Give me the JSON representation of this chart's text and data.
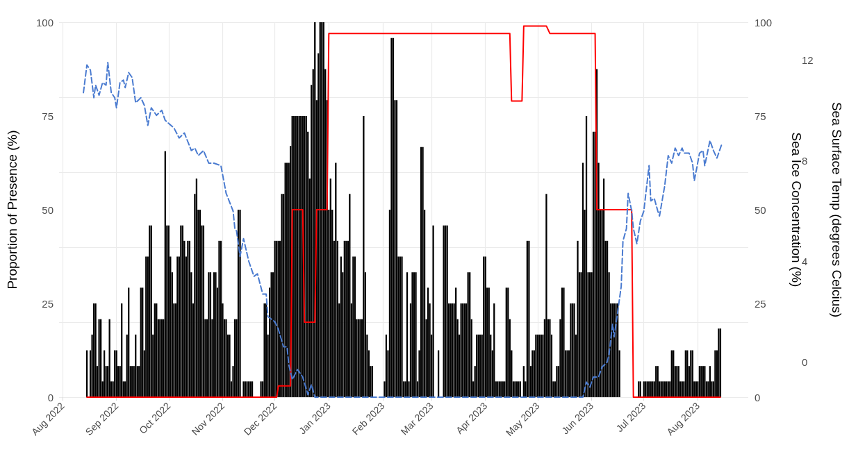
{
  "chart_data": {
    "type": "bar",
    "ylabel": "Proportion of Presence (%)",
    "y2label": "Sea Ice Concentration (%)",
    "y3label": "Sea Surface Temp (degrees Celcius)",
    "xlim": [
      "2022-07-30",
      "2023-08-30"
    ],
    "xticks": [
      {
        "value": "2022-08",
        "label": "Aug 2022"
      },
      {
        "value": "2022-09",
        "label": "Sep 2022"
      },
      {
        "value": "2022-10",
        "label": "Oct 2022"
      },
      {
        "value": "2022-11",
        "label": "Nov 2022"
      },
      {
        "value": "2022-12",
        "label": "Dec 2022"
      },
      {
        "value": "2023-01",
        "label": "Jan 2023"
      },
      {
        "value": "2023-02",
        "label": "Feb 2023"
      },
      {
        "value": "2023-03",
        "label": "Mar 2023"
      },
      {
        "value": "2023-04",
        "label": "Apr 2023"
      },
      {
        "value": "2023-05",
        "label": "May 2023"
      },
      {
        "value": "2023-06",
        "label": "Jun 2023"
      },
      {
        "value": "2023-07",
        "label": "Jul 2023"
      },
      {
        "value": "2023-08",
        "label": "Aug 2023"
      }
    ],
    "ylim": [
      0,
      100
    ],
    "yticks": [
      0,
      25,
      50,
      75,
      100
    ],
    "y2lim": [
      0,
      100
    ],
    "y2ticks": [
      0,
      25,
      50,
      75,
      100
    ],
    "y3lim": [
      -1.4,
      13.5
    ],
    "y3ticks": [
      0,
      4,
      8,
      12
    ],
    "grid": true,
    "x": [
      "2022-08-15",
      "2022-08-16",
      "2022-08-17",
      "2022-08-18",
      "2022-08-19",
      "2022-08-20",
      "2022-08-21",
      "2022-08-22",
      "2022-08-23",
      "2022-08-24",
      "2022-08-25",
      "2022-08-26",
      "2022-08-27",
      "2022-08-28",
      "2022-08-29",
      "2022-08-30",
      "2022-08-31",
      "2022-09-01",
      "2022-09-02",
      "2022-09-03",
      "2022-09-04",
      "2022-09-05",
      "2022-09-06",
      "2022-09-07",
      "2022-09-08",
      "2022-09-09",
      "2022-09-10",
      "2022-09-11",
      "2022-09-12",
      "2022-09-13",
      "2022-09-14",
      "2022-09-15",
      "2022-09-16",
      "2022-09-17",
      "2022-09-18",
      "2022-09-19",
      "2022-09-20",
      "2022-09-21",
      "2022-09-22",
      "2022-09-23",
      "2022-09-24",
      "2022-09-25",
      "2022-09-26",
      "2022-09-27",
      "2022-09-28",
      "2022-09-29",
      "2022-09-30",
      "2022-10-01",
      "2022-10-02",
      "2022-10-03",
      "2022-10-04",
      "2022-10-05",
      "2022-10-06",
      "2022-10-07",
      "2022-10-08",
      "2022-10-09",
      "2022-10-10",
      "2022-10-11",
      "2022-10-12",
      "2022-10-13",
      "2022-10-14",
      "2022-10-15",
      "2022-10-16",
      "2022-10-17",
      "2022-10-18",
      "2022-10-19",
      "2022-10-20",
      "2022-10-21",
      "2022-10-22",
      "2022-10-23",
      "2022-10-24",
      "2022-10-25",
      "2022-10-26",
      "2022-10-27",
      "2022-10-28",
      "2022-10-29",
      "2022-10-30",
      "2022-10-31",
      "2022-11-01",
      "2022-11-02",
      "2022-11-03",
      "2022-11-04",
      "2022-11-05",
      "2022-11-06",
      "2022-11-07",
      "2022-11-08",
      "2022-11-09",
      "2022-11-10",
      "2022-11-11",
      "2022-11-12",
      "2022-11-13",
      "2022-11-14",
      "2022-11-15",
      "2022-11-16",
      "2022-11-17",
      "2022-11-18",
      "2022-11-19",
      "2022-11-20",
      "2022-11-21",
      "2022-11-22",
      "2022-11-23",
      "2022-11-24",
      "2022-11-25",
      "2022-11-26",
      "2022-11-27",
      "2022-11-28",
      "2022-11-29",
      "2022-11-30",
      "2022-12-01",
      "2022-12-02",
      "2022-12-03",
      "2022-12-04",
      "2022-12-05",
      "2022-12-06",
      "2022-12-07",
      "2022-12-08",
      "2022-12-09",
      "2022-12-10",
      "2022-12-11",
      "2022-12-12",
      "2022-12-13",
      "2022-12-14",
      "2022-12-15",
      "2022-12-16",
      "2022-12-17",
      "2022-12-18",
      "2022-12-19",
      "2022-12-20",
      "2022-12-21",
      "2022-12-22",
      "2022-12-23",
      "2022-12-24",
      "2022-12-25",
      "2022-12-26",
      "2022-12-27",
      "2022-12-28",
      "2022-12-29",
      "2022-12-30",
      "2022-12-31",
      "2023-01-01",
      "2023-01-02",
      "2023-01-03",
      "2023-01-04",
      "2023-01-05",
      "2023-01-06",
      "2023-01-07",
      "2023-01-08",
      "2023-01-09",
      "2023-01-10",
      "2023-01-11",
      "2023-01-12",
      "2023-01-13",
      "2023-01-14",
      "2023-01-15",
      "2023-01-16",
      "2023-01-17",
      "2023-01-18",
      "2023-01-19",
      "2023-01-20",
      "2023-01-21",
      "2023-01-22",
      "2023-01-23",
      "2023-01-24",
      "2023-01-25",
      "2023-01-26",
      "2023-01-27",
      "2023-01-28",
      "2023-01-29",
      "2023-01-30",
      "2023-01-31",
      "2023-02-01",
      "2023-02-02",
      "2023-02-03",
      "2023-02-04",
      "2023-02-05",
      "2023-02-06",
      "2023-02-07",
      "2023-02-08",
      "2023-02-09",
      "2023-02-10",
      "2023-02-11",
      "2023-02-12",
      "2023-02-13",
      "2023-02-14",
      "2023-02-15",
      "2023-02-16",
      "2023-02-17",
      "2023-02-18",
      "2023-02-19",
      "2023-02-20",
      "2023-02-21",
      "2023-02-22",
      "2023-02-23",
      "2023-02-24",
      "2023-02-25",
      "2023-02-26",
      "2023-02-27",
      "2023-02-28",
      "2023-03-01",
      "2023-03-02",
      "2023-03-03",
      "2023-03-04",
      "2023-03-05",
      "2023-03-06",
      "2023-03-07",
      "2023-03-08",
      "2023-03-09",
      "2023-03-10",
      "2023-03-11",
      "2023-03-12",
      "2023-03-13",
      "2023-03-14",
      "2023-03-15",
      "2023-03-16",
      "2023-03-17",
      "2023-03-18",
      "2023-03-19",
      "2023-03-20",
      "2023-03-21",
      "2023-03-22",
      "2023-03-23",
      "2023-03-24",
      "2023-03-25",
      "2023-03-26",
      "2023-03-27",
      "2023-03-28",
      "2023-03-29",
      "2023-03-30",
      "2023-03-31",
      "2023-04-01",
      "2023-04-02",
      "2023-04-03",
      "2023-04-04",
      "2023-04-05",
      "2023-04-06",
      "2023-04-07",
      "2023-04-08",
      "2023-04-09",
      "2023-04-10",
      "2023-04-11",
      "2023-04-12",
      "2023-04-13",
      "2023-04-14",
      "2023-04-15",
      "2023-04-16",
      "2023-04-17",
      "2023-04-18",
      "2023-04-19",
      "2023-04-20",
      "2023-04-21",
      "2023-04-22",
      "2023-04-23",
      "2023-04-24",
      "2023-04-25",
      "2023-04-26",
      "2023-04-27",
      "2023-04-28",
      "2023-04-29",
      "2023-04-30",
      "2023-05-01",
      "2023-05-02",
      "2023-05-03",
      "2023-05-04",
      "2023-05-05",
      "2023-05-06",
      "2023-05-07",
      "2023-05-08",
      "2023-05-09",
      "2023-05-10",
      "2023-05-11",
      "2023-05-12",
      "2023-05-13",
      "2023-05-14",
      "2023-05-15",
      "2023-05-16",
      "2023-05-17",
      "2023-05-18",
      "2023-05-19",
      "2023-05-20",
      "2023-05-21",
      "2023-05-22",
      "2023-05-23",
      "2023-05-24",
      "2023-05-25",
      "2023-05-26",
      "2023-05-27",
      "2023-05-28",
      "2023-05-29",
      "2023-05-30",
      "2023-05-31",
      "2023-06-01",
      "2023-06-02",
      "2023-06-03",
      "2023-06-04",
      "2023-06-05",
      "2023-06-06",
      "2023-06-07",
      "2023-06-08",
      "2023-06-09",
      "2023-06-10",
      "2023-06-11",
      "2023-06-12",
      "2023-06-13",
      "2023-06-14",
      "2023-06-15",
      "2023-06-16",
      "2023-06-17",
      "2023-06-18",
      "2023-06-19",
      "2023-06-20",
      "2023-06-21",
      "2023-06-22",
      "2023-06-23",
      "2023-06-24",
      "2023-06-25",
      "2023-06-26",
      "2023-06-27",
      "2023-06-28",
      "2023-06-29",
      "2023-06-30",
      "2023-07-01",
      "2023-07-02",
      "2023-07-03",
      "2023-07-04",
      "2023-07-05",
      "2023-07-06",
      "2023-07-07",
      "2023-07-08",
      "2023-07-09",
      "2023-07-10",
      "2023-07-11",
      "2023-07-12",
      "2023-07-13",
      "2023-07-14",
      "2023-07-15",
      "2023-07-16",
      "2023-07-17",
      "2023-07-18",
      "2023-07-19",
      "2023-07-20",
      "2023-07-21",
      "2023-07-22",
      "2023-07-23",
      "2023-07-24",
      "2023-07-25",
      "2023-07-26",
      "2023-07-27",
      "2023-07-28",
      "2023-07-29",
      "2023-07-30",
      "2023-07-31",
      "2023-08-01",
      "2023-08-02",
      "2023-08-03",
      "2023-08-04",
      "2023-08-05",
      "2023-08-06",
      "2023-08-07",
      "2023-08-08",
      "2023-08-09",
      "2023-08-10",
      "2023-08-11",
      "2023-08-12",
      "2023-08-13",
      "2023-08-14"
    ],
    "series": [
      {
        "color": "#000000",
        "values": [
          12.5,
          0,
          12.5,
          16.7,
          25,
          25,
          8.3,
          20.8,
          20.8,
          4.2,
          12.5,
          8.3,
          8.3,
          20.8,
          4.2,
          4.2,
          12.5,
          12.5,
          8.3,
          8.3,
          25,
          4.2,
          4.2,
          16.7,
          29.2,
          8.3,
          8.3,
          8.3,
          16.7,
          8.3,
          8.3,
          29.2,
          29.2,
          12.5,
          37.5,
          37.5,
          45.8,
          45.8,
          16.7,
          25,
          25,
          20.8,
          20.8,
          20.8,
          20.8,
          65.6,
          45.8,
          45.8,
          37.5,
          33.3,
          25,
          25,
          37.5,
          37.5,
          45.8,
          45.8,
          41.7,
          37.5,
          41.7,
          41.7,
          33.3,
          25,
          54.2,
          58.3,
          50,
          50,
          45.8,
          45.8,
          20.8,
          20.8,
          33.3,
          33.3,
          20.8,
          33.3,
          33.3,
          29.2,
          41.7,
          41.7,
          25,
          20.8,
          20.8,
          16.7,
          16.7,
          4.2,
          8.3,
          20.8,
          20.8,
          50,
          50,
          0,
          4.2,
          4.2,
          4.2,
          4.2,
          4.2,
          4.2,
          0,
          0,
          0,
          0,
          4.2,
          4.2,
          25,
          25,
          16.7,
          29.2,
          33.3,
          33.3,
          41.7,
          41.7,
          41.7,
          41.7,
          54.2,
          54.2,
          62.5,
          62.5,
          62.5,
          67,
          75,
          75,
          75,
          75,
          75,
          75,
          75,
          75,
          75,
          70.8,
          58.3,
          83.3,
          87.5,
          100,
          79.2,
          91.7,
          100,
          100,
          100,
          87.5,
          79.2,
          50,
          58.3,
          50,
          41.7,
          62.5,
          41.7,
          25,
          37.5,
          33.3,
          41.7,
          41.7,
          41.7,
          54.2,
          25,
          37.5,
          37.5,
          20.8,
          20.8,
          20.8,
          20.8,
          75,
          33.3,
          16.7,
          12.5,
          8.3,
          8.3,
          0,
          0,
          0,
          0,
          0,
          0,
          4.2,
          16.7,
          12.5,
          50,
          95.8,
          95.8,
          79.2,
          79.2,
          37.5,
          37.5,
          37.5,
          4.2,
          4.2,
          33.3,
          4.2,
          25,
          33.3,
          33.3,
          33.3,
          4.2,
          12.5,
          66.7,
          66.7,
          50,
          20.8,
          29.2,
          25,
          16.7,
          45.8,
          0,
          0,
          12.5,
          0,
          0,
          45.8,
          45.8,
          45.8,
          25,
          25,
          25,
          25,
          29.2,
          20.8,
          16.7,
          25,
          25,
          25,
          25,
          33.3,
          33.3,
          20.8,
          4.2,
          8.3,
          16.7,
          16.7,
          16.7,
          16.7,
          37.5,
          37.5,
          29.2,
          29.2,
          16.7,
          12.5,
          25,
          4.2,
          4.2,
          4.2,
          4.2,
          4.2,
          4.2,
          29.2,
          29.2,
          20.8,
          12.5,
          4.2,
          4.2,
          4.2,
          4.2,
          4.2,
          0,
          8.3,
          4.2,
          41.7,
          41.7,
          8.3,
          12.5,
          12.5,
          16.7,
          16.7,
          16.7,
          16.7,
          16.7,
          20.8,
          54.2,
          20.8,
          20.8,
          16.7,
          4.2,
          4.2,
          8.3,
          8.3,
          20.8,
          29.2,
          29.2,
          12.5,
          12.5,
          12.5,
          25,
          25,
          25,
          16.7,
          41.7,
          33.3,
          33.3,
          62.5,
          50,
          75,
          33.3,
          33.3,
          33.3,
          70.8,
          70.8,
          87.5,
          62.5,
          50,
          50,
          58.3,
          41.7,
          41.7,
          33.3,
          25,
          25,
          25,
          25,
          25,
          12.5,
          0,
          0,
          0,
          0,
          0,
          0,
          0,
          0,
          0,
          0,
          4.2,
          4.2,
          0,
          4.2,
          4.2,
          4.2,
          4.2,
          4.2,
          4.2,
          4.2,
          8.3,
          8.3,
          4.2,
          4.2,
          4.2,
          4.2,
          4.2,
          4.2,
          4.2,
          12.5,
          12.5,
          8.3,
          8.3,
          8.3,
          4.2,
          4.2,
          4.2,
          12.5,
          12.5,
          8.3,
          12.5,
          12.5,
          4.2,
          4.2,
          4.2,
          8.3,
          8.3,
          8.3,
          8.3,
          4.2,
          4.2,
          8.3,
          4.2,
          4.2,
          12.5,
          12.5,
          18.3,
          18.3
        ]
      },
      {
        "type": "line",
        "color": "#ff0000",
        "axis": "y2",
        "x": [
          "2022-08-15",
          "2022-12-02",
          "2022-12-03",
          "2022-12-10",
          "2022-12-11",
          "2022-12-17",
          "2022-12-18",
          "2022-12-24",
          "2022-12-25",
          "2022-12-31",
          "2023-01-01",
          "2023-04-15",
          "2023-04-16",
          "2023-04-22",
          "2023-04-23",
          "2023-05-06",
          "2023-05-08",
          "2023-06-03",
          "2023-06-04",
          "2023-06-24",
          "2023-06-25",
          "2023-08-14"
        ],
        "values": [
          0,
          0,
          3,
          3,
          50,
          50,
          20,
          20,
          50,
          50,
          97,
          97,
          79,
          79,
          99,
          99,
          97,
          97,
          50,
          50,
          0,
          0
        ]
      },
      {
        "type": "line",
        "color": "#4a7bd0",
        "axis": "y3",
        "line_style": "dashed",
        "x": [
          "2022-08-13",
          "2022-08-15",
          "2022-08-17",
          "2022-08-19",
          "2022-08-20",
          "2022-08-22",
          "2022-08-24",
          "2022-08-26",
          "2022-08-27",
          "2022-08-29",
          "2022-08-31",
          "2022-09-01",
          "2022-09-03",
          "2022-09-05",
          "2022-09-06",
          "2022-09-08",
          "2022-09-10",
          "2022-09-12",
          "2022-09-15",
          "2022-09-17",
          "2022-09-19",
          "2022-09-21",
          "2022-09-24",
          "2022-09-27",
          "2022-09-29",
          "2022-10-04",
          "2022-10-07",
          "2022-10-10",
          "2022-10-14",
          "2022-10-16",
          "2022-10-18",
          "2022-10-21",
          "2022-10-24",
          "2022-10-27",
          "2022-10-31",
          "2022-11-03",
          "2022-11-07",
          "2022-11-08",
          "2022-11-09",
          "2022-11-11",
          "2022-11-13",
          "2022-11-16",
          "2022-11-19",
          "2022-11-21",
          "2022-11-24",
          "2022-11-26",
          "2022-11-27",
          "2022-12-01",
          "2022-12-03",
          "2022-12-06",
          "2022-12-08",
          "2022-12-09",
          "2022-12-11",
          "2022-12-14",
          "2022-12-17",
          "2022-12-20",
          "2022-12-22",
          "2022-12-24",
          "2023-05-27",
          "2023-05-29",
          "2023-05-31",
          "2023-06-02",
          "2023-06-05",
          "2023-06-07",
          "2023-06-10",
          "2023-06-11",
          "2023-06-13",
          "2023-06-14",
          "2023-06-16",
          "2023-06-18",
          "2023-06-19",
          "2023-06-21",
          "2023-06-22",
          "2023-06-24",
          "2023-06-25",
          "2023-06-27",
          "2023-06-29",
          "2023-07-01",
          "2023-07-04",
          "2023-07-05",
          "2023-07-07",
          "2023-07-09",
          "2023-07-10",
          "2023-07-13",
          "2023-07-15",
          "2023-07-17",
          "2023-07-19",
          "2023-07-21",
          "2023-07-23",
          "2023-07-24",
          "2023-07-27",
          "2023-07-29",
          "2023-07-30",
          "2023-08-02",
          "2023-08-04",
          "2023-08-05",
          "2023-08-08",
          "2023-08-10",
          "2023-08-12",
          "2023-08-15"
        ],
        "values": [
          10.7,
          11.8,
          11.6,
          10.5,
          11.0,
          10.6,
          11.1,
          11.0,
          11.9,
          10.7,
          10.5,
          10.1,
          11.1,
          11.2,
          10.9,
          11.5,
          11.3,
          10.3,
          10.5,
          10.2,
          9.4,
          10.1,
          9.8,
          10.0,
          9.6,
          9.3,
          8.9,
          9.1,
          8.4,
          8.5,
          8.2,
          8.4,
          7.9,
          7.9,
          7.8,
          6.7,
          6.0,
          5.3,
          5.2,
          4.2,
          4.9,
          4.0,
          3.4,
          3.5,
          2.7,
          2.7,
          1.8,
          1.6,
          1.3,
          0.6,
          0.6,
          -0.1,
          -0.7,
          -0.3,
          -0.6,
          -1.3,
          -0.9,
          -1.4,
          -1.4,
          -0.8,
          -1.0,
          -0.6,
          -0.6,
          -0.2,
          0.0,
          0.3,
          1.5,
          1.0,
          2.0,
          3.0,
          4.8,
          5.3,
          6.7,
          6.0,
          5.3,
          4.7,
          5.6,
          6.0,
          7.8,
          6.4,
          6.5,
          6.0,
          5.8,
          7.0,
          8.2,
          7.9,
          8.5,
          8.2,
          8.5,
          8.3,
          8.3,
          7.9,
          7.2,
          8.3,
          8.4,
          7.8,
          8.8,
          8.4,
          8.1,
          8.7
        ]
      }
    ]
  }
}
